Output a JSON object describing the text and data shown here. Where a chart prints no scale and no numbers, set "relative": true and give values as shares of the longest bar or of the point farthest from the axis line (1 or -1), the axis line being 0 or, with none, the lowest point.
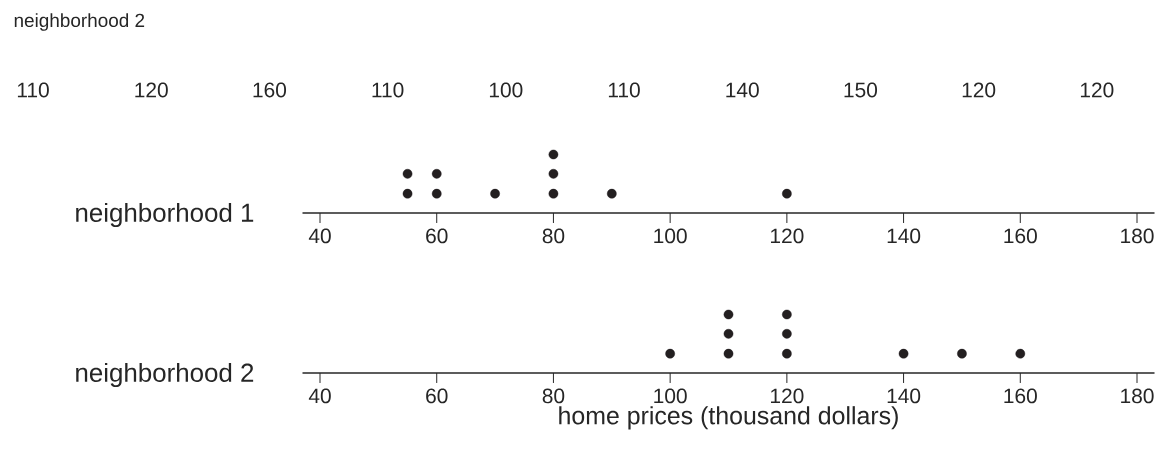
{
  "chart_data": [
    {
      "type": "scatter",
      "ylabel": "neighborhood 1",
      "relative": true,
      "annotations": [
        "neighborhood 2",
        "110",
        "120",
        "160",
        "110",
        "100",
        "110",
        "140",
        "150",
        "120",
        "120"
      ],
      "x": [
        55,
        55,
        60,
        60,
        70,
        80,
        80,
        80,
        90,
        120
      ],
      "values": [
        0.33,
        0.67,
        0.33,
        0.67,
        0.33,
        0.33,
        0.67,
        1,
        0.33,
        0.33
      ],
      "color": "#231f20",
      "marker": "circle",
      "xlim": [
        37,
        183
      ],
      "xticks": [
        40,
        60,
        80,
        100,
        120,
        140,
        160,
        180
      ],
      "tick_labels": "x"
    },
    {
      "type": "scatter",
      "ylabel": "neighborhood 2",
      "xlabel": "home prices (thousand dollars)",
      "relative": true,
      "x": [
        100,
        110,
        110,
        110,
        120,
        120,
        120,
        140,
        150,
        160
      ],
      "values": [
        0.33,
        0.33,
        0.67,
        1,
        0.33,
        0.67,
        1,
        0.33,
        0.33,
        0.33
      ],
      "color": "#231f20",
      "marker": "circle",
      "xlim": [
        37,
        183
      ],
      "xticks": [
        40,
        60,
        80,
        100,
        120,
        140,
        160,
        180
      ],
      "tick_labels": "x"
    }
  ]
}
